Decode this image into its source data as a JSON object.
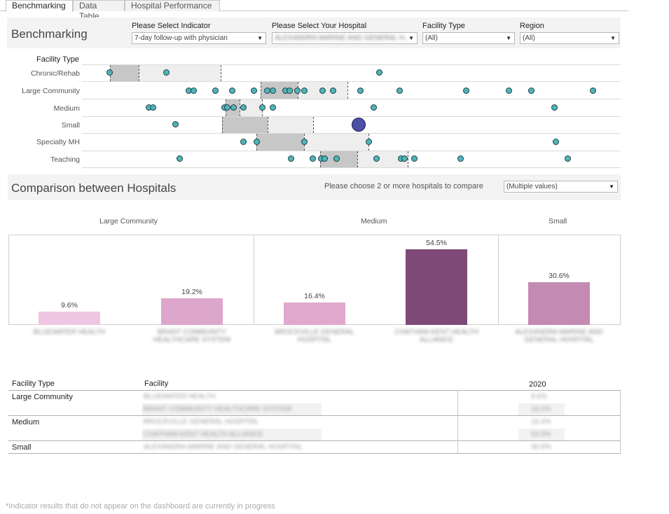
{
  "tabs": [
    {
      "label": "Benchmarking",
      "active": true
    },
    {
      "label": "Data Table",
      "active": false
    },
    {
      "label": "Hospital Performance",
      "active": false
    }
  ],
  "filters": {
    "title": "Benchmarking",
    "indicator_label": "Please Select Indicator",
    "indicator_value": "7-day follow-up with physician",
    "hospital_label": "Please Select Your Hospital",
    "hospital_value": "ALEXANDRA MARINE AND GENERAL H...",
    "facility_label": "Facility Type",
    "facility_value": "(All)",
    "region_label": "Region",
    "region_value": "(All)"
  },
  "dotplot": {
    "column_header": "Facility Type",
    "rows": [
      "Chronic/Rehab",
      "Large Community",
      "Medium",
      "Small",
      "Specialty MH",
      "Teaching"
    ]
  },
  "comparison": {
    "title": "Comparison between Hospitals",
    "prompt": "Please choose 2 or more hospitals to compare",
    "select_value": "(Multiple values)"
  },
  "chart_data": {
    "type": "bar",
    "panels": [
      "Large Community",
      "Medium",
      "Small"
    ],
    "categories": [
      "BLUEWATER HEALTH",
      "BRANT COMMUNITY HEALTHCARE SYSTEM",
      "BROCKVILLE GENERAL HOSPITAL",
      "CHATHAM-KENT HEALTH ALLIANCE",
      "ALEXANDRA MARINE AND GENERAL HOSPITAL"
    ],
    "values": [
      9.6,
      19.2,
      16.4,
      54.5,
      30.6
    ],
    "value_labels": [
      "9.6%",
      "19.2%",
      "16.4%",
      "54.5%",
      "30.6%"
    ],
    "colors": [
      "#efc6e2",
      "#dda6cb",
      "#e0a8cd",
      "#7d4a78",
      "#c38ab2"
    ]
  },
  "table": {
    "headers": {
      "facility_type": "Facility Type",
      "facility": "Facility",
      "year": "2020"
    },
    "groups": [
      "Large Community",
      "Medium",
      "Small"
    ],
    "rows": [
      {
        "facility": "BLUEWATER HEALTH",
        "value": "9.6%"
      },
      {
        "facility": "BRANT COMMUNITY HEALTHCARE SYSTEM",
        "value": "19.2%"
      },
      {
        "facility": "BROCKVILLE GENERAL HOSPITAL",
        "value": "16.4%"
      },
      {
        "facility": "CHATHAM-KENT HEALTH ALLIANCE",
        "value": "54.5%"
      },
      {
        "facility": "ALEXANDRA MARINE AND GENERAL HOSPITAL",
        "value": "30.6%"
      }
    ]
  },
  "footnote": "*Indicator results that do not appear on the dashboard are currently in progress",
  "icons": {
    "dropdown": "chevron-down-icon"
  }
}
